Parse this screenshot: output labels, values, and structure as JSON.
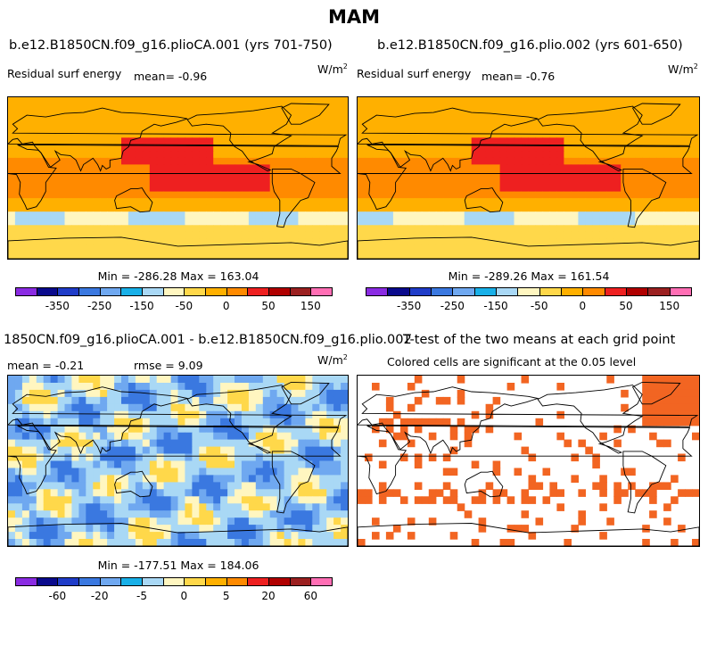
{
  "figure_title": "MAM",
  "panels": [
    {
      "case": "b.e12.B1850CN.f09_g16.plioCA.001 (yrs 701-750)",
      "variable": "Residual surf energy",
      "mean_label": "mean=  -0.96",
      "units": "W/m",
      "units_exp": "2",
      "minmax": "Min = -286.28 Max = 163.04"
    },
    {
      "case": "b.e12.B1850CN.f09_g16.plio.002 (yrs 601-650)",
      "variable": "Residual surf energy",
      "mean_label": "mean=  -0.76",
      "units": "W/m",
      "units_exp": "2",
      "minmax": "Min = -289.26 Max = 161.54"
    },
    {
      "case": "1850CN.f09_g16.plioCA.001 - b.e12.B1850CN.f09_g16.plio.002",
      "mean_label": "mean =  -0.21",
      "rmse_label": "rmse =   9.09",
      "units": "W/m",
      "units_exp": "2",
      "minmax": "Min = -177.51 Max = 184.06"
    },
    {
      "case": "T-test of the two means at each grid point",
      "subtitle": "Colored cells are significant at the 0.05 level"
    }
  ],
  "chart_data": [
    {
      "type": "heatmap",
      "title": "b.e12.B1850CN.f09_g16.plioCA.001 (yrs 701-750)",
      "variable": "Residual surf energy",
      "units": "W/m2",
      "mean": -0.96,
      "min": -286.28,
      "max": 163.04,
      "colorbar_levels": [
        -350,
        -300,
        -250,
        -200,
        -150,
        -100,
        -50,
        -25,
        0,
        25,
        50,
        100,
        150
      ],
      "colorbar_labels": [
        "-350",
        "-250",
        "-150",
        "-50",
        "0",
        "50",
        "150"
      ]
    },
    {
      "type": "heatmap",
      "title": "b.e12.B1850CN.f09_g16.plio.002 (yrs 601-650)",
      "variable": "Residual surf energy",
      "units": "W/m2",
      "mean": -0.76,
      "min": -289.26,
      "max": 161.54,
      "colorbar_levels": [
        -350,
        -300,
        -250,
        -200,
        -150,
        -100,
        -50,
        -25,
        0,
        25,
        50,
        100,
        150
      ],
      "colorbar_labels": [
        "-350",
        "-250",
        "-150",
        "-50",
        "0",
        "50",
        "150"
      ]
    },
    {
      "type": "heatmap",
      "title": "1850CN.f09_g16.plioCA.001 - b.e12.B1850CN.f09_g16.plio.002",
      "units": "W/m2",
      "mean": -0.21,
      "rmse": 9.09,
      "min": -177.51,
      "max": 184.06,
      "colorbar_levels": [
        -60,
        -40,
        -20,
        -10,
        -5,
        -2,
        0,
        2,
        5,
        10,
        20,
        40,
        60
      ],
      "colorbar_labels": [
        "-60",
        "-20",
        "-5",
        "0",
        "5",
        "20",
        "60"
      ]
    },
    {
      "type": "heatmap",
      "title": "T-test of the two means at each grid point",
      "subtitle": "Colored cells are significant at the 0.05 level",
      "significance_level": 0.05,
      "significant_color": "#f26522"
    }
  ],
  "colors": {
    "colorbar": [
      "#8a2be2",
      "#0a0a8c",
      "#1f3cc8",
      "#3a78e0",
      "#6fa8f0",
      "#19b0e8",
      "#a9d8f5",
      "#fff6c0",
      "#ffd84a",
      "#ffb000",
      "#ff8a00",
      "#ee2020",
      "#b00000",
      "#9b2020",
      "#ff6eb4"
    ]
  }
}
